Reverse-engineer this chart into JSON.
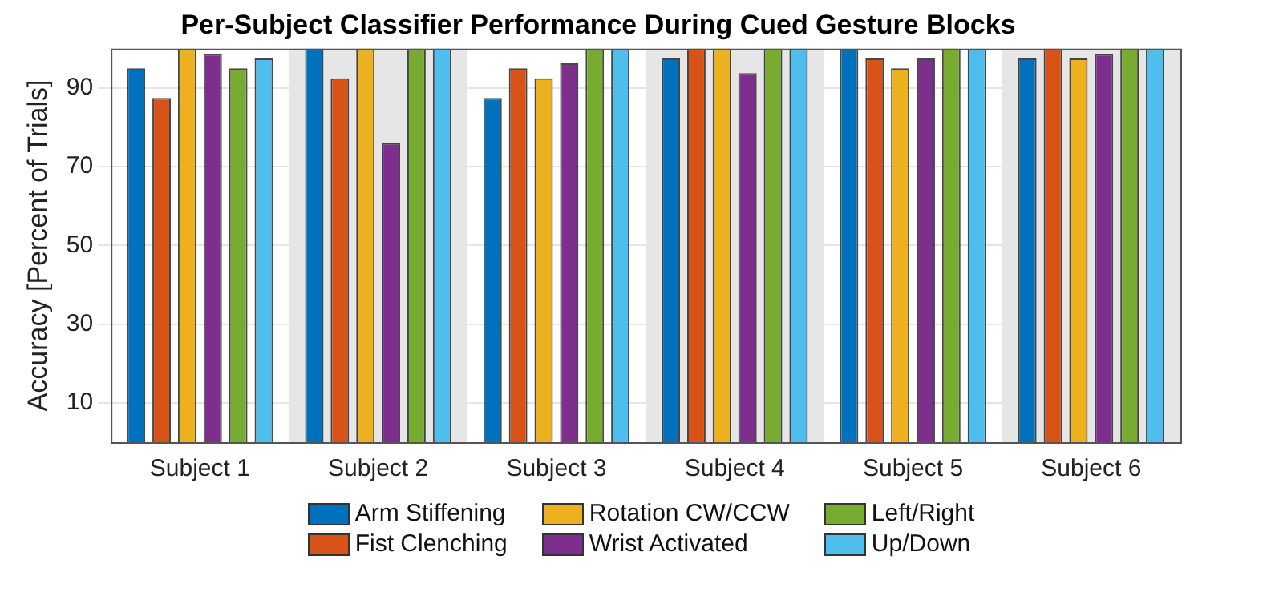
{
  "chart_data": {
    "type": "bar",
    "title": "Per-Subject Classifier Performance During Cued Gesture Blocks",
    "ylabel": "Accuracy [Percent of Trials]",
    "categories": [
      "Subject 1",
      "Subject 2",
      "Subject 3",
      "Subject 4",
      "Subject 5",
      "Subject 6"
    ],
    "series": [
      {
        "name": "Arm Stiffening",
        "color": "#0072bd",
        "values": [
          95,
          100,
          87.5,
          97.5,
          100,
          97.5
        ]
      },
      {
        "name": "Fist Clenching",
        "color": "#d95319",
        "values": [
          87.5,
          92.5,
          95,
          100,
          97.5,
          100
        ]
      },
      {
        "name": "Rotation CW/CCW",
        "color": "#edb120",
        "values": [
          100,
          100,
          92.5,
          100,
          95,
          97.5
        ]
      },
      {
        "name": "Wrist Activated",
        "color": "#7e2f8e",
        "values": [
          98.7,
          76,
          96.3,
          93.8,
          97.5,
          98.7
        ]
      },
      {
        "name": "Left/Right",
        "color": "#77ac30",
        "values": [
          95,
          100,
          100,
          100,
          100,
          100
        ]
      },
      {
        "name": "Up/Down",
        "color": "#4dbeee",
        "values": [
          97.5,
          100,
          100,
          100,
          100,
          100
        ]
      }
    ],
    "ylim": [
      0,
      100
    ],
    "yticks": [
      10,
      30,
      50,
      70,
      90
    ],
    "grid": "y",
    "legend": "bottom"
  }
}
